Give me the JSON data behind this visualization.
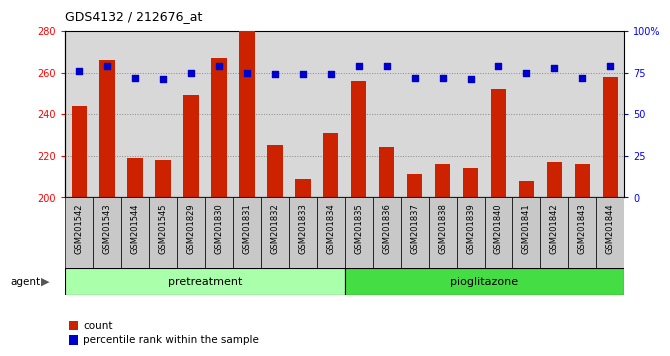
{
  "title": "GDS4132 / 212676_at",
  "samples": [
    "GSM201542",
    "GSM201543",
    "GSM201544",
    "GSM201545",
    "GSM201829",
    "GSM201830",
    "GSM201831",
    "GSM201832",
    "GSM201833",
    "GSM201834",
    "GSM201835",
    "GSM201836",
    "GSM201837",
    "GSM201838",
    "GSM201839",
    "GSM201840",
    "GSM201841",
    "GSM201842",
    "GSM201843",
    "GSM201844"
  ],
  "counts": [
    244,
    266,
    219,
    218,
    249,
    267,
    281,
    225,
    209,
    231,
    256,
    224,
    211,
    216,
    214,
    252,
    208,
    217,
    216,
    258
  ],
  "percentiles": [
    76,
    79,
    72,
    71,
    75,
    79,
    75,
    74,
    74,
    74,
    79,
    79,
    72,
    72,
    71,
    79,
    75,
    78,
    72,
    79
  ],
  "pretreatment_count": 10,
  "pioglitazone_count": 10,
  "group_color_pre": "#AAFFAA",
  "group_color_pio": "#44DD44",
  "ylim_left": [
    200,
    280
  ],
  "ylim_right": [
    0,
    100
  ],
  "yticks_left": [
    200,
    220,
    240,
    260,
    280
  ],
  "yticks_right": [
    0,
    25,
    50,
    75,
    100
  ],
  "ytick_right_labels": [
    "0",
    "25",
    "50",
    "75",
    "100%"
  ],
  "bar_color": "#CC2200",
  "dot_color": "#0000CC",
  "bar_width": 0.55,
  "plot_bg": "#D8D8D8",
  "xtick_bg": "#C8C8C8",
  "grid_color": "#888888",
  "title_fontsize": 9,
  "tick_fontsize": 7,
  "label_fontsize": 8,
  "legend_count": "count",
  "legend_percentile": "percentile rank within the sample"
}
